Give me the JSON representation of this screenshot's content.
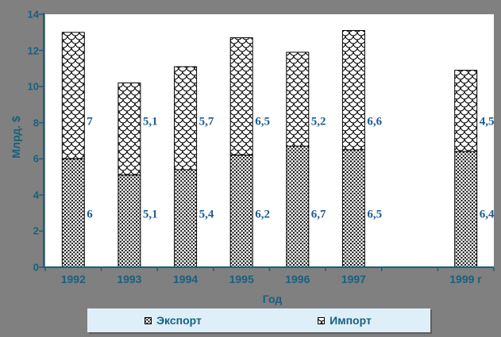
{
  "colors": {
    "background": "#808080",
    "plot_bg": "#FFFFFF",
    "axis": "#17617F",
    "label_text": "#17617F",
    "data_label_text": "#1C5C94",
    "legend_bg": "#DFEFFA",
    "pattern_ink": "#000000"
  },
  "y_axis": {
    "title": "Млрд. $",
    "tick_labels": [
      "0",
      "2",
      "4",
      "6",
      "8",
      "10",
      "12",
      "14"
    ],
    "min": 0,
    "max": 14
  },
  "x_axis": {
    "title": "Год"
  },
  "legend": {
    "items": [
      {
        "label": "Экспорт",
        "pattern": "dots"
      },
      {
        "label": "Импорт",
        "pattern": "scales"
      }
    ]
  },
  "chart_data": {
    "type": "bar",
    "stacked": true,
    "title": "",
    "xlabel": "Год",
    "ylabel": "Млрд. $",
    "ylim": [
      0,
      14
    ],
    "y_ticks": [
      0,
      2,
      4,
      6,
      8,
      10,
      12,
      14
    ],
    "grid": false,
    "legend_position": "bottom",
    "categories": [
      "1992",
      "1993",
      "1994",
      "1995",
      "1996",
      "1997",
      "",
      "1999 г"
    ],
    "series": [
      {
        "name": "Экспорт",
        "pattern": "dots",
        "values": [
          6,
          5.1,
          5.4,
          6.2,
          6.7,
          6.5,
          null,
          6.4
        ],
        "labels": [
          "6",
          "5,1",
          "5,4",
          "6,2",
          "6,7",
          "6,5",
          null,
          "6,4"
        ]
      },
      {
        "name": "Импорт",
        "pattern": "scales",
        "values": [
          7,
          5.1,
          5.7,
          6.5,
          5.2,
          6.6,
          null,
          4.5
        ],
        "labels": [
          "7",
          "5,1",
          "5,7",
          "6,5",
          "5,2",
          "6,6",
          null,
          "4,5"
        ]
      }
    ]
  }
}
